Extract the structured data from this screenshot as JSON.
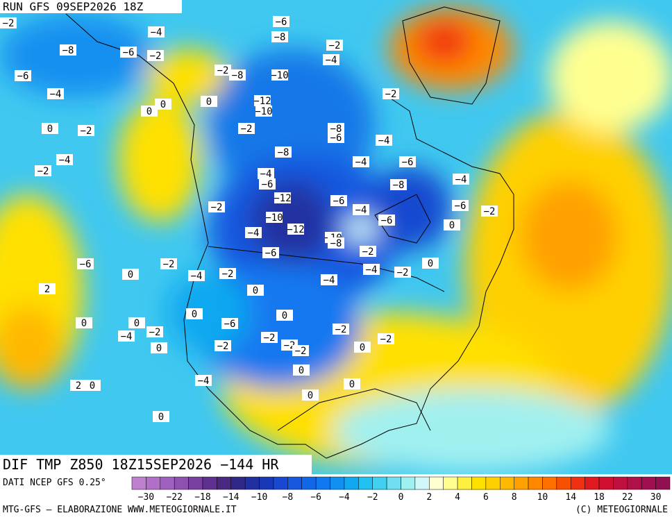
{
  "header": {
    "run": "RUN GFS 09SEP2026 18Z"
  },
  "footer": {
    "title": "DIF TMP Z850 18Z15SEP2026 −144 HR",
    "source": "DATI NCEP GFS 0.25°",
    "credit": "MTG-GFS — ELABORAZIONE WWW.METEOGIORNALE.IT",
    "copyright": "(C) METEOGIORNALE"
  },
  "legend": {
    "labels": [
      "−30",
      "−22",
      "−18",
      "−14",
      "−10",
      "−8",
      "−6",
      "−4",
      "−2",
      "0",
      "2",
      "4",
      "6",
      "8",
      "10",
      "14",
      "18",
      "22",
      "30"
    ],
    "colors": [
      "#c080d0",
      "#b070c8",
      "#a060c0",
      "#9050b0",
      "#7840a0",
      "#603090",
      "#482880",
      "#302888",
      "#2030a0",
      "#1838b8",
      "#1848d0",
      "#1858e0",
      "#1068e8",
      "#1078f0",
      "#1090f0",
      "#10a8f0",
      "#20c0f0",
      "#40d0f0",
      "#70e0f0",
      "#a0f0f0",
      "#d0f8f8",
      "#ffffd0",
      "#ffff90",
      "#fff040",
      "#ffe000",
      "#ffd000",
      "#ffb800",
      "#ffa000",
      "#ff8800",
      "#ff7000",
      "#f85000",
      "#f03010",
      "#e01820",
      "#d01030",
      "#c01040",
      "#b01048",
      "#a01050",
      "#901050"
    ]
  },
  "map_labels": [
    "−2",
    "−4",
    "−6",
    "−8",
    "−6",
    "−2",
    "−8",
    "−6",
    "−8",
    "−2",
    "0",
    "−2",
    "−4",
    "0",
    "−2",
    "−4",
    "−8",
    "−10",
    "−12",
    "−10",
    "−2",
    "0",
    "0",
    "−2",
    "−4",
    "−2",
    "−8",
    "−6",
    "−4",
    "−4",
    "−6",
    "−12",
    "−10",
    "−12",
    "−6",
    "−10",
    "−8",
    "−4",
    "−6",
    "−8",
    "−6",
    "0",
    "−2",
    "−4",
    "−6",
    "−2",
    "−4",
    "−4",
    "−6",
    "−2",
    "−4",
    "0",
    "−2",
    "−6",
    "−4",
    "0",
    "−2",
    "−4",
    "−2",
    "0",
    "0",
    "2",
    "0",
    "0",
    "0",
    "−2",
    "−4",
    "−6",
    "0",
    "−2",
    "−2",
    "−2",
    "0",
    "−2",
    "−2",
    "0",
    "−2",
    "0",
    "0",
    "2",
    "−4",
    "0",
    "0"
  ]
}
